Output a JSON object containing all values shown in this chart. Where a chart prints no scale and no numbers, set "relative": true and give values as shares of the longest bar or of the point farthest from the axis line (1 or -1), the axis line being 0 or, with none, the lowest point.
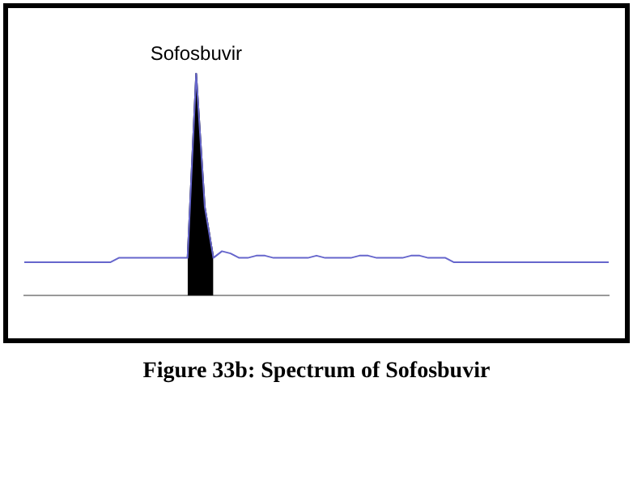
{
  "chart_data": {
    "type": "line",
    "relative": true,
    "grid": false,
    "legend": false,
    "marker": "none",
    "categories": [
      null,
      null,
      null,
      null,
      null,
      null,
      null,
      null,
      null,
      null,
      null,
      null,
      null,
      null,
      null,
      null,
      null,
      null,
      null,
      null,
      null,
      null,
      null,
      null,
      null,
      null,
      null,
      null,
      null,
      null,
      null,
      null,
      null,
      null,
      null,
      null,
      null,
      null,
      null,
      null,
      null,
      null,
      null,
      null,
      null,
      null,
      null,
      null,
      null,
      null,
      null,
      null,
      null,
      null,
      null,
      null,
      null,
      null,
      null,
      null,
      null,
      null,
      null,
      null,
      null,
      null,
      null,
      null,
      null
    ],
    "series": [
      {
        "type": "line",
        "color": "#6666cc",
        "values": [
          0.15,
          0.15,
          0.15,
          0.15,
          0.15,
          0.15,
          0.15,
          0.15,
          0.15,
          0.15,
          0.15,
          0.17,
          0.17,
          0.17,
          0.17,
          0.17,
          0.17,
          0.17,
          0.17,
          0.17,
          1,
          0.4,
          0.17,
          0.2,
          0.19,
          0.17,
          0.17,
          0.18,
          0.18,
          0.17,
          0.17,
          0.17,
          0.17,
          0.17,
          0.18,
          0.17,
          0.17,
          0.17,
          0.17,
          0.18,
          0.18,
          0.17,
          0.17,
          0.17,
          0.17,
          0.18,
          0.18,
          0.17,
          0.17,
          0.17,
          0.15,
          0.15,
          0.15,
          0.15,
          0.15,
          0.15,
          0.15,
          0.15,
          0.15,
          0.15,
          0.15,
          0.15,
          0.15,
          0.15,
          0.15,
          0.15,
          0.15,
          0.15,
          0.15
        ]
      },
      {
        "type": "area",
        "color": "#000000",
        "values": [
          null,
          null,
          null,
          null,
          null,
          null,
          null,
          null,
          null,
          null,
          null,
          null,
          null,
          null,
          null,
          null,
          null,
          null,
          null,
          0.17,
          1,
          0.4,
          0.17,
          null,
          null,
          null,
          null,
          null,
          null,
          null,
          null,
          null,
          null,
          null,
          null,
          null,
          null,
          null,
          null,
          null,
          null,
          null,
          null,
          null,
          null,
          null,
          null,
          null,
          null,
          null,
          null,
          null,
          null,
          null,
          null,
          null,
          null,
          null,
          null,
          null,
          null,
          null,
          null,
          null,
          null,
          null,
          null,
          null,
          null
        ]
      }
    ],
    "annotations": [
      "Sofosbuvir",
      "Figure 33b: Spectrum of Sofosbuvir"
    ]
  }
}
